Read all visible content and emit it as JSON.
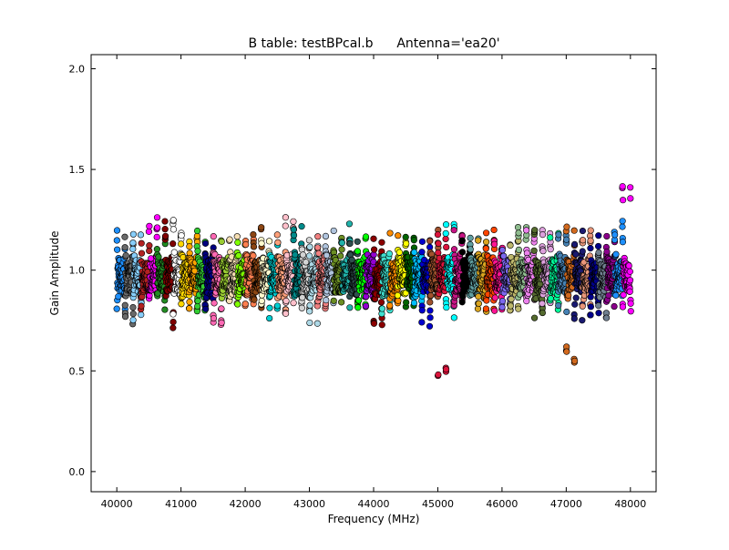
{
  "chart_data": {
    "type": "scatter",
    "title_left": "B table: testBPcal.b",
    "title_right": "Antenna='ea20'",
    "xlabel": "Frequency (MHz)",
    "ylabel": "Gain Amplitude",
    "xlim": [
      39600,
      48400
    ],
    "ylim": [
      -0.1,
      2.07
    ],
    "x_ticks": [
      40000,
      41000,
      42000,
      43000,
      44000,
      45000,
      46000,
      47000,
      48000
    ],
    "x_tick_labels": [
      "40000",
      "41000",
      "42000",
      "43000",
      "44000",
      "45000",
      "46000",
      "47000",
      "48000"
    ],
    "y_ticks": [
      0.0,
      0.5,
      1.0,
      1.5,
      2.0
    ],
    "y_tick_labels": [
      "0.0",
      "0.5",
      "1.0",
      "1.5",
      "2.0"
    ],
    "grid": false,
    "legend": "none",
    "marker": "circle",
    "freq_start": 40000,
    "freq_end": 48000,
    "spectral_windows": 64,
    "channels_per_window": 64,
    "window_ranges": [
      [
        0.8,
        1.2
      ],
      [
        0.72,
        1.18
      ],
      [
        0.75,
        1.2
      ],
      [
        0.78,
        1.15
      ],
      [
        0.85,
        1.28
      ],
      [
        0.8,
        1.15
      ],
      [
        0.68,
        1.25
      ],
      [
        0.7,
        1.27
      ],
      [
        0.8,
        1.15
      ],
      [
        0.78,
        1.18
      ],
      [
        0.76,
        1.2
      ],
      [
        0.78,
        1.15
      ],
      [
        0.7,
        1.18
      ],
      [
        0.8,
        1.15
      ],
      [
        0.82,
        1.2
      ],
      [
        0.8,
        1.16
      ],
      [
        0.78,
        1.18
      ],
      [
        0.8,
        1.22
      ],
      [
        0.82,
        1.15
      ],
      [
        0.75,
        1.15
      ],
      [
        0.8,
        1.18
      ],
      [
        0.78,
        1.28
      ],
      [
        0.8,
        1.25
      ],
      [
        0.78,
        1.18
      ],
      [
        0.73,
        1.12
      ],
      [
        0.8,
        1.18
      ],
      [
        0.82,
        1.2
      ],
      [
        0.84,
        1.18
      ],
      [
        0.8,
        1.25
      ],
      [
        0.82,
        1.18
      ],
      [
        0.8,
        1.2
      ],
      [
        0.8,
        1.12
      ],
      [
        0.7,
        1.18
      ],
      [
        0.78,
        1.15
      ],
      [
        0.8,
        1.2
      ],
      [
        0.82,
        1.15
      ],
      [
        0.8,
        1.18
      ],
      [
        0.82,
        1.18
      ],
      [
        0.72,
        1.2
      ],
      [
        0.78,
        1.2
      ],
      [
        0.47,
        1.18
      ],
      [
        0.76,
        1.3
      ],
      [
        0.8,
        1.22
      ],
      [
        0.82,
        1.15
      ],
      [
        0.83,
        1.16
      ],
      [
        0.78,
        1.15
      ],
      [
        0.8,
        1.2
      ],
      [
        0.78,
        1.15
      ],
      [
        0.78,
        1.1
      ],
      [
        0.75,
        1.18
      ],
      [
        0.8,
        1.22
      ],
      [
        0.82,
        1.2
      ],
      [
        0.75,
        1.2
      ],
      [
        0.78,
        1.22
      ],
      [
        0.8,
        1.25
      ],
      [
        0.79,
        1.18
      ],
      [
        0.53,
        1.22
      ],
      [
        0.75,
        1.2
      ],
      [
        0.8,
        1.2
      ],
      [
        0.76,
        1.2
      ],
      [
        0.75,
        1.15
      ],
      [
        0.8,
        1.18
      ],
      [
        0.82,
        1.25
      ],
      [
        0.77,
        1.45
      ]
    ],
    "series_colors": [
      "#1e90ff",
      "#696969",
      "#87cefa",
      "#b22222",
      "#ff00ff",
      "#228b22",
      "#800000",
      "#ffffff",
      "#ffd700",
      "#ffa500",
      "#32cd32",
      "#000080",
      "#ff69b4",
      "#9acd32",
      "#f5deb3",
      "#7fff00",
      "#ff7f50",
      "#8b4513",
      "#fffacd",
      "#00ced1",
      "#ffa07a",
      "#ffc0cb",
      "#008b8b",
      "#d3d3d3",
      "#add8e6",
      "#f08080",
      "#b0c4de",
      "#6b8e23",
      "#20b2aa",
      "#2f4f4f",
      "#00ff00",
      "#9400d3",
      "#8b0000",
      "#40e0d0",
      "#ff8c00",
      "#ffff00",
      "#006400",
      "#00bfff",
      "#0000cd",
      "#a0522d",
      "#dc143c",
      "#00ffff",
      "#c71585",
      "#000000",
      "#5f9ea0",
      "#daa520",
      "#ff4500",
      "#ff1493",
      "#7b68ee",
      "#bdb76b",
      "#8fbc8f",
      "#ee82ee",
      "#556b2f",
      "#dda0dd",
      "#00fa9a",
      "#4682b4",
      "#d2691e",
      "#191970",
      "#e9967a",
      "#00008b",
      "#708090",
      "#8b008b",
      "#1e90ff",
      "#ff00ff"
    ]
  }
}
